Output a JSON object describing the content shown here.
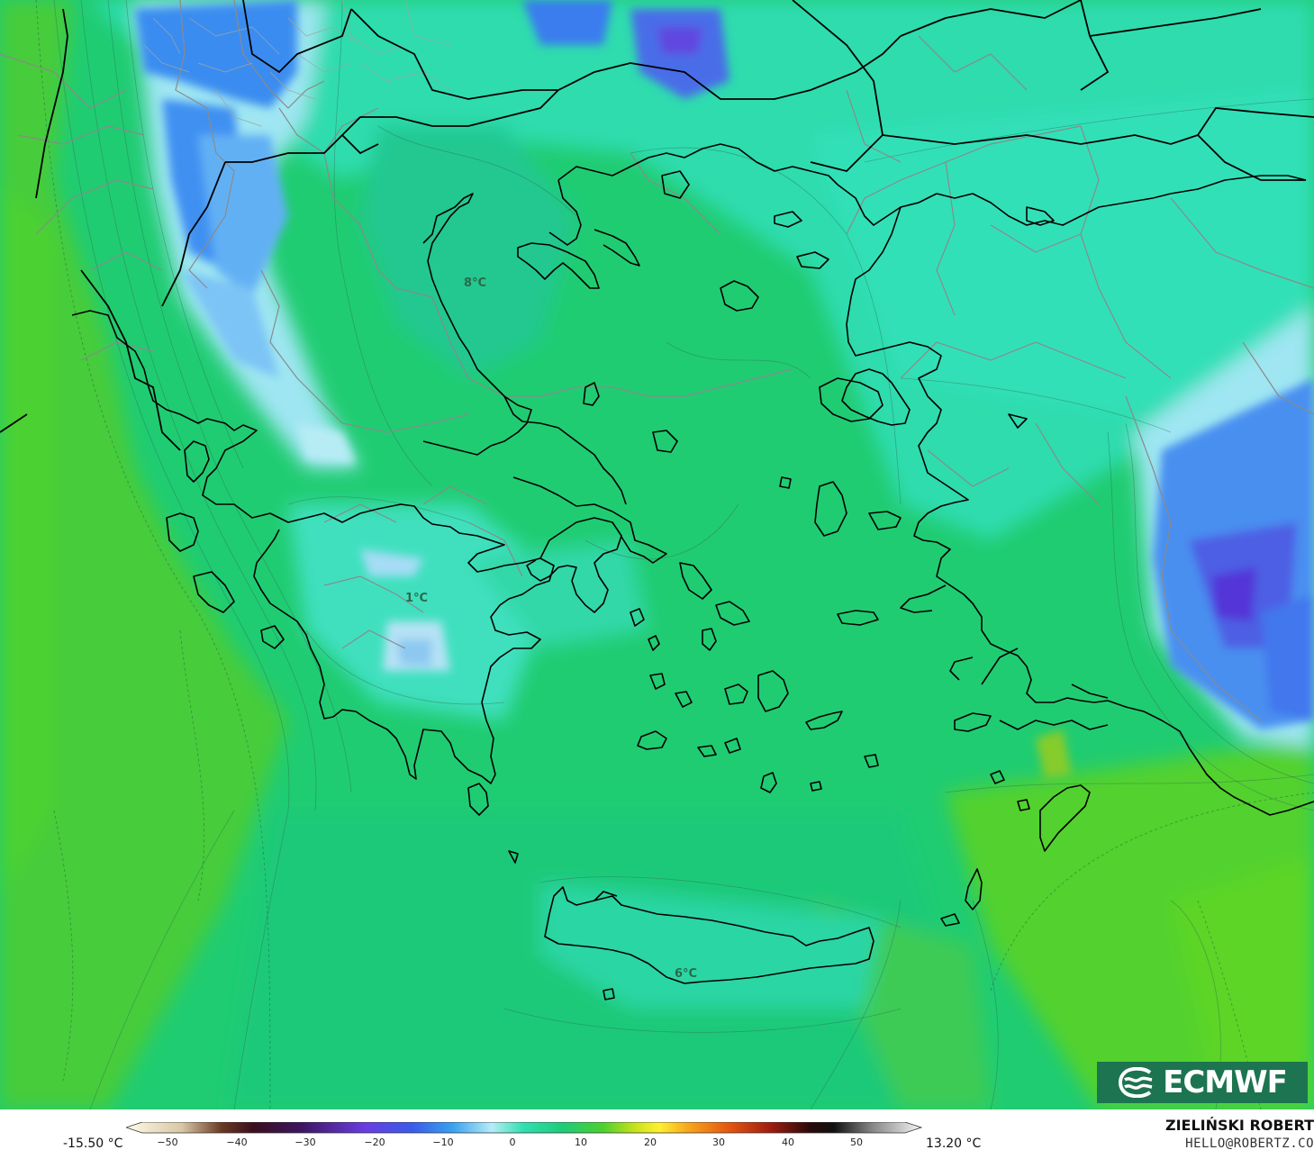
{
  "map": {
    "temperature_labels": [
      "8°C",
      "1°C",
      "6°C"
    ]
  },
  "logo": {
    "text": "ECMWF",
    "icon": "ecmwf-wave-icon",
    "color": "#1d7450"
  },
  "colorbar": {
    "min_label": "-15.50 °C",
    "max_label": "13.20 °C",
    "ticks": [
      "−50",
      "−40",
      "−30",
      "−20",
      "−10",
      "0",
      "10",
      "20",
      "30",
      "40",
      "50"
    ]
  },
  "credits": {
    "author": "ZIELIŃSKI ROBERT",
    "email": "HELLO@ROBERTZ.CO"
  },
  "colors": {
    "land_green": "#3ecf3a",
    "sea_green": "#1fcf78",
    "teal": "#2fe0b0",
    "cold_light_blue": "#a8e6f5",
    "cold_blue": "#3a8cf0",
    "cold_indigo": "#5b3ee0"
  }
}
